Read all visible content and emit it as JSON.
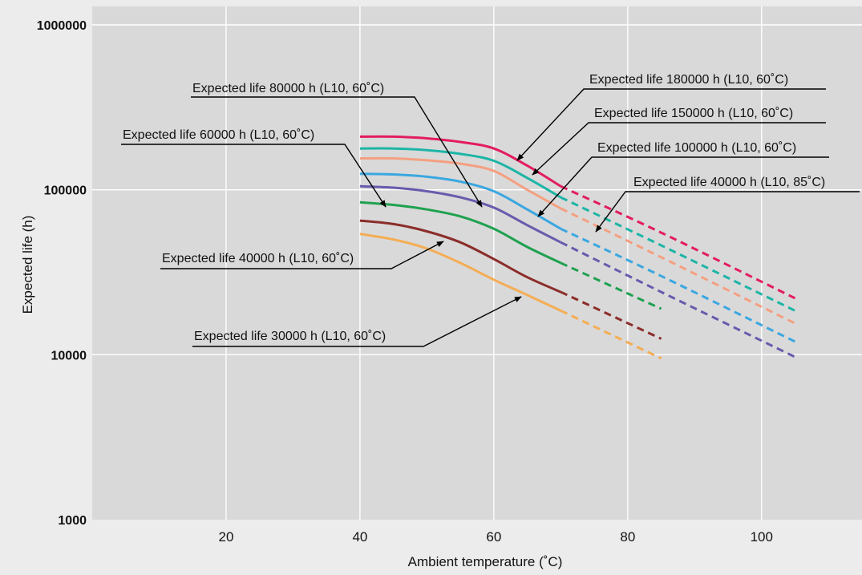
{
  "chart_data": {
    "type": "line",
    "title": "",
    "xlabel": "Ambient temperature (˚C)",
    "ylabel": "Expected life (h)",
    "xlim": [
      0,
      115
    ],
    "ylim": [
      1000,
      1000000
    ],
    "yscale": "log",
    "xticks": [
      20,
      40,
      60,
      80,
      100
    ],
    "xtick_labels": [
      "20",
      "40",
      "60",
      "80",
      "100"
    ],
    "yticks": [
      1000,
      10000,
      100000,
      1000000
    ],
    "ytick_labels": [
      "1000",
      "10000",
      "100000",
      "1000000"
    ],
    "grid": true,
    "legend": "none (leader-line annotations)",
    "line_style_note": "solid up to guaranteed temperature, dashed beyond",
    "series": [
      {
        "color": "#e31c5f",
        "solid": [
          [
            40,
            210000
          ],
          [
            45,
            210000
          ],
          [
            50,
            205000
          ],
          [
            55,
            195000
          ],
          [
            60,
            178000
          ],
          [
            65,
            140000
          ],
          [
            70,
            105000
          ]
        ],
        "dashed": [
          [
            70,
            105000
          ],
          [
            85,
            55000
          ],
          [
            105,
            22000
          ]
        ]
      },
      {
        "color": "#1db5a6",
        "solid": [
          [
            40,
            178000
          ],
          [
            45,
            178000
          ],
          [
            50,
            174000
          ],
          [
            55,
            165000
          ],
          [
            60,
            150000
          ],
          [
            65,
            118000
          ],
          [
            70,
            90000
          ]
        ],
        "dashed": [
          [
            70,
            90000
          ],
          [
            85,
            46000
          ],
          [
            105,
            18500
          ]
        ]
      },
      {
        "color": "#f4a081",
        "solid": [
          [
            40,
            155000
          ],
          [
            45,
            155000
          ],
          [
            50,
            151000
          ],
          [
            55,
            144000
          ],
          [
            60,
            130000
          ],
          [
            65,
            100000
          ],
          [
            70,
            77000
          ]
        ],
        "dashed": [
          [
            70,
            77000
          ],
          [
            85,
            39000
          ],
          [
            105,
            15500
          ]
        ]
      },
      {
        "color": "#3ba7e0",
        "solid": [
          [
            40,
            125000
          ],
          [
            45,
            124000
          ],
          [
            50,
            120000
          ],
          [
            55,
            112000
          ],
          [
            60,
            98000
          ],
          [
            65,
            76000
          ],
          [
            70,
            58000
          ]
        ],
        "dashed": [
          [
            70,
            58000
          ],
          [
            85,
            30000
          ],
          [
            105,
            12000
          ]
        ]
      },
      {
        "color": "#6a5aad",
        "solid": [
          [
            40,
            105000
          ],
          [
            45,
            103000
          ],
          [
            50,
            98000
          ],
          [
            55,
            90000
          ],
          [
            60,
            78000
          ],
          [
            65,
            61000
          ],
          [
            70,
            48000
          ]
        ],
        "dashed": [
          [
            70,
            48000
          ],
          [
            85,
            24000
          ],
          [
            105,
            9700
          ]
        ]
      },
      {
        "color": "#1fa150",
        "solid": [
          [
            40,
            84000
          ],
          [
            45,
            81000
          ],
          [
            50,
            76000
          ],
          [
            55,
            69000
          ],
          [
            60,
            58000
          ],
          [
            65,
            45000
          ],
          [
            70,
            36000
          ]
        ],
        "dashed": [
          [
            70,
            36000
          ],
          [
            85,
            19000
          ]
        ]
      },
      {
        "color": "#8b2d2a",
        "solid": [
          [
            40,
            65000
          ],
          [
            45,
            62000
          ],
          [
            50,
            56000
          ],
          [
            55,
            48000
          ],
          [
            60,
            38000
          ],
          [
            65,
            29500
          ],
          [
            70,
            24000
          ]
        ],
        "dashed": [
          [
            70,
            24000
          ],
          [
            85,
            12500
          ]
        ]
      },
      {
        "color": "#f5ad54",
        "solid": [
          [
            40,
            54000
          ],
          [
            45,
            50000
          ],
          [
            50,
            44000
          ],
          [
            55,
            36000
          ],
          [
            60,
            28500
          ],
          [
            65,
            23000
          ],
          [
            70,
            18500
          ]
        ],
        "dashed": [
          [
            70,
            18500
          ],
          [
            85,
            9500
          ]
        ]
      }
    ],
    "annotations": [
      {
        "text": "Expected life 180000 h (L10, 60˚C)"
      },
      {
        "text": "Expected life 150000 h (L10, 60˚C)"
      },
      {
        "text": "Expected life 100000 h (L10, 60˚C)"
      },
      {
        "text": "Expected life 40000 h (L10, 85˚C)"
      },
      {
        "text": "Expected life 80000 h (L10, 60˚C)"
      },
      {
        "text": "Expected life 60000 h (L10, 60˚C)"
      },
      {
        "text": "Expected life 40000 h (L10, 60˚C)"
      },
      {
        "text": "Expected life 30000 h (L10, 60˚C)"
      }
    ]
  }
}
